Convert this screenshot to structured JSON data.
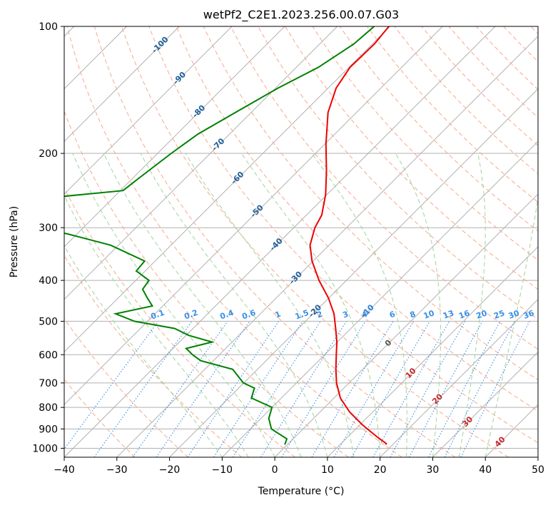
{
  "chart_data": {
    "type": "line",
    "title": "wetPf2_C2E1.2023.256.00.07.G03",
    "xlabel": "Temperature (°C)",
    "ylabel": "Pressure (hPa)",
    "xlim": [
      -40,
      50
    ],
    "ylim": [
      1050,
      100
    ],
    "y_scale": "log",
    "grid": true,
    "x_ticks": [
      "−40",
      "−30",
      "−20",
      "−10",
      "0",
      "10",
      "20",
      "30",
      "40",
      "50"
    ],
    "y_ticks": [
      "100",
      "200",
      "300",
      "400",
      "500",
      "600",
      "700",
      "800",
      "900",
      "1000"
    ],
    "series": [
      {
        "color": "#ee0000",
        "pressure": [
          100,
          110,
          125,
          140,
          160,
          190,
          220,
          250,
          280,
          300,
          330,
          360,
          400,
          440,
          480,
          520,
          560,
          600,
          650,
          700,
          760,
          820,
          880,
          940,
          975,
          980
        ],
        "temperature": [
          -60.2,
          -59.6,
          -59.8,
          -58.5,
          -55.4,
          -49.8,
          -44.6,
          -40.3,
          -37.1,
          -36.0,
          -33.6,
          -30.2,
          -25.2,
          -20.1,
          -16.0,
          -12.9,
          -10.1,
          -7.8,
          -5.1,
          -2.4,
          1.2,
          5.6,
          10.5,
          15.6,
          18.6,
          18.7
        ]
      },
      {
        "color": "#008000",
        "pressure": [
          100,
          110,
          125,
          140,
          160,
          180,
          200,
          230,
          245,
          255,
          270,
          300,
          310,
          330,
          360,
          380,
          400,
          420,
          440,
          460,
          480,
          500,
          520,
          540,
          560,
          580,
          600,
          620,
          650,
          700,
          720,
          760,
          800,
          850,
          900,
          950,
          980
        ],
        "temperature": [
          -63.0,
          -63.5,
          -65.8,
          -69.5,
          -73.0,
          -76.0,
          -77.4,
          -78.9,
          -79.5,
          -92.5,
          -91.0,
          -91.0,
          -82.0,
          -71.5,
          -62.0,
          -61.7,
          -57.5,
          -57.0,
          -54.5,
          -52.0,
          -57.5,
          -52.5,
          -43.5,
          -39.5,
          -33.8,
          -37.5,
          -35.1,
          -32.4,
          -24.7,
          -20.1,
          -17.0,
          -15.7,
          -10.0,
          -8.5,
          -6.0,
          -1.2,
          -0.5
        ]
      }
    ],
    "annotations": {
      "dry_adiabats": [
        "-100",
        "-90",
        "-80",
        "-70",
        "-60",
        "-50",
        "-40",
        "-30",
        "-20",
        "-10",
        "0",
        "10",
        "20",
        "30",
        "40"
      ],
      "mixing_ratios": [
        "0.1",
        "0.2",
        "0.4",
        "0.6",
        "1",
        "1.5",
        "2",
        "3",
        "4",
        "6",
        "8",
        "10",
        "13",
        "16",
        "20",
        "25",
        "30",
        "36"
      ]
    }
  }
}
